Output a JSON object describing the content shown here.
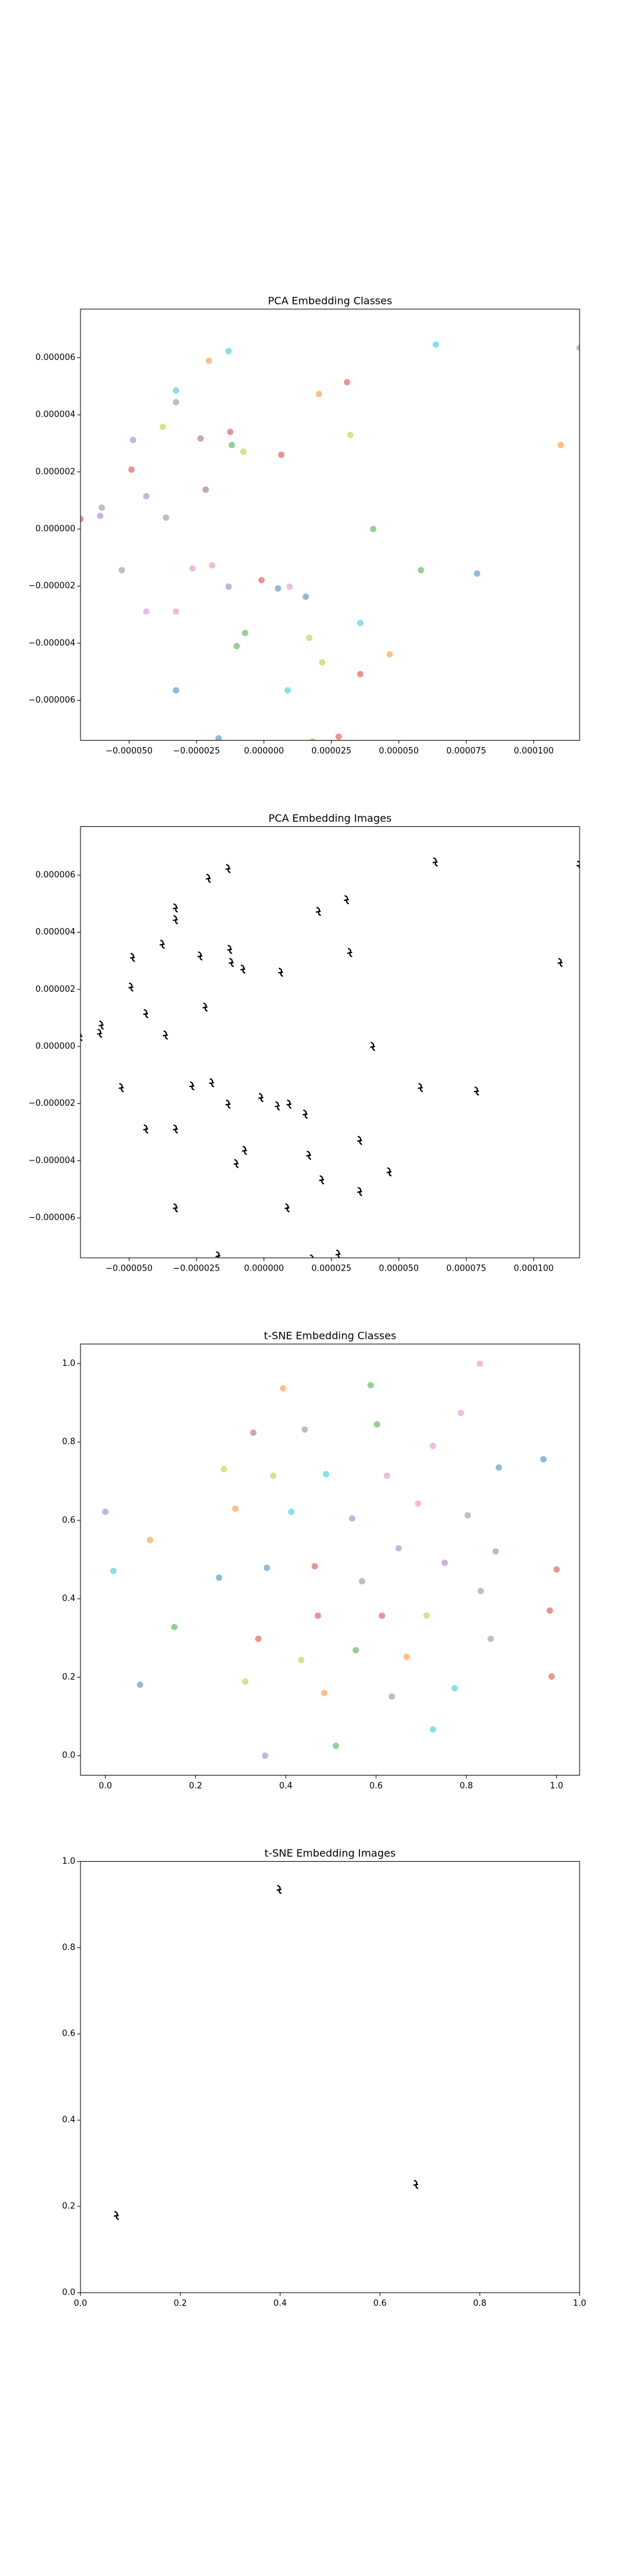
{
  "chart_data": [
    {
      "type": "scatter",
      "title": "PCA Embedding Classes",
      "x": [
        -1.31e-05,
        6.37e-05,
        0.000117,
        -2.04e-05,
        3.08e-05,
        -3.26e-05,
        2.04e-05,
        -3.26e-05,
        -3.75e-05,
        -4.85e-05,
        -1.25e-05,
        -2.35e-05,
        3.2e-05,
        -1.19e-05,
        -7.6e-06,
        6.4e-06,
        0.00011,
        -4.91e-05,
        -2.16e-05,
        -4.36e-05,
        -6.01e-05,
        -6.07e-05,
        -3.63e-05,
        -6.8e-05,
        4.05e-05,
        -5.27e-05,
        -2.65e-05,
        -1.92e-05,
        5.82e-05,
        7.9e-05,
        -9e-07,
        -1.31e-05,
        5.2e-06,
        9.5e-06,
        1.55e-05,
        -4.36e-05,
        -3.26e-05,
        3.57e-05,
        -7e-06,
        1.68e-05,
        -1.01e-05,
        4.66e-05,
        2.16e-05,
        3.57e-05,
        -3.26e-05,
        8.8e-06,
        -1.68e-05,
        1.8e-05,
        2.77e-05
      ],
      "y": [
        6.23e-06,
        6.46e-06,
        6.35e-06,
        5.89e-06,
        5.14e-06,
        4.85e-06,
        4.73e-06,
        4.44e-06,
        3.58e-06,
        3.12e-06,
        3.4e-06,
        3.17e-06,
        3.29e-06,
        2.94e-06,
        2.71e-06,
        2.6e-06,
        2.94e-06,
        2.08e-06,
        1.38e-06,
        1.15e-06,
        7.5e-07,
        4.6e-07,
        4e-07,
        3.5e-07,
        0,
        -1.44e-06,
        -1.38e-06,
        -1.27e-06,
        -1.44e-06,
        -1.56e-06,
        -1.79e-06,
        -2.02e-06,
        -2.08e-06,
        -2.02e-06,
        -2.37e-06,
        -2.89e-06,
        -2.89e-06,
        -3.29e-06,
        -3.64e-06,
        -3.81e-06,
        -4.1e-06,
        -4.39e-06,
        -4.67e-06,
        -5.08e-06,
        -5.65e-06,
        -5.65e-06,
        -7.33e-06,
        -7.44e-06,
        -7.27e-06
      ],
      "colors": [
        "#17becf",
        "#17becf",
        "#7f7f7f",
        "#ff7f0e",
        "#d62728",
        "#17becf",
        "#ff7f0e",
        "#7f7f7f",
        "#bcbd22",
        "#9467bd",
        "#d62728",
        "#8c564b",
        "#bcbd22",
        "#2ca02c",
        "#bcbd22",
        "#d62728",
        "#ff7f0e",
        "#d62728",
        "#8c564b",
        "#9467bd",
        "#7f7f7f",
        "#9467bd",
        "#7f7f7f",
        "#d62728",
        "#2ca02c",
        "#7f7f7f",
        "#e377c2",
        "#e377c2",
        "#2ca02c",
        "#1f77b4",
        "#d62728",
        "#9467bd",
        "#1f77b4",
        "#e377c2",
        "#1f77b4",
        "#e377c2",
        "#e377c2",
        "#17becf",
        "#2ca02c",
        "#bcbd22",
        "#2ca02c",
        "#ff7f0e",
        "#bcbd22",
        "#d62728",
        "#1f77b4",
        "#17becf",
        "#1f77b4",
        "#ff7f0e",
        "#d62728"
      ],
      "alpha": 0.5,
      "xlim": [
        -6.8e-05,
        0.000117
      ],
      "ylim": [
        -7.4e-06,
        7.7e-06
      ],
      "xticks": [
        {
          "value": -5e-05,
          "label": "−0.000050"
        },
        {
          "value": -2.5e-05,
          "label": "−0.000025"
        },
        {
          "value": 0,
          "label": "0.000000"
        },
        {
          "value": 2.5e-05,
          "label": "0.000025"
        },
        {
          "value": 5e-05,
          "label": "0.000050"
        },
        {
          "value": 7.5e-05,
          "label": "0.000075"
        },
        {
          "value": 0.0001,
          "label": "0.000100"
        }
      ],
      "yticks": [
        {
          "value": -6e-06,
          "label": "−0.000006"
        },
        {
          "value": -4e-06,
          "label": "−0.000004"
        },
        {
          "value": -2e-06,
          "label": "−0.000002"
        },
        {
          "value": 0,
          "label": "0.000000"
        },
        {
          "value": 2e-06,
          "label": "0.000002"
        },
        {
          "value": 4e-06,
          "label": "0.000004"
        },
        {
          "value": 6e-06,
          "label": "0.000006"
        }
      ]
    },
    {
      "type": "image-scatter",
      "title": "PCA Embedding Images",
      "x": [
        -1.31e-05,
        6.37e-05,
        0.000117,
        -2.04e-05,
        3.08e-05,
        -3.26e-05,
        2.04e-05,
        -3.26e-05,
        -3.75e-05,
        -4.85e-05,
        -1.25e-05,
        -2.35e-05,
        3.2e-05,
        -1.19e-05,
        -7.6e-06,
        6.4e-06,
        0.00011,
        -4.91e-05,
        -2.16e-05,
        -4.36e-05,
        -6.01e-05,
        -6.07e-05,
        -3.63e-05,
        -6.8e-05,
        4.05e-05,
        -5.27e-05,
        -2.65e-05,
        -1.92e-05,
        5.82e-05,
        7.9e-05,
        -9e-07,
        -1.31e-05,
        5.2e-06,
        9.5e-06,
        1.55e-05,
        -4.36e-05,
        -3.26e-05,
        3.57e-05,
        -7e-06,
        1.68e-05,
        -1.01e-05,
        4.66e-05,
        2.16e-05,
        3.57e-05,
        -3.26e-05,
        8.8e-06,
        -1.68e-05,
        1.8e-05,
        2.77e-05
      ],
      "y": [
        6.23e-06,
        6.46e-06,
        6.35e-06,
        5.89e-06,
        5.14e-06,
        4.85e-06,
        4.73e-06,
        4.44e-06,
        3.58e-06,
        3.12e-06,
        3.4e-06,
        3.17e-06,
        3.29e-06,
        2.94e-06,
        2.71e-06,
        2.6e-06,
        2.94e-06,
        2.08e-06,
        1.38e-06,
        1.15e-06,
        7.5e-07,
        4.6e-07,
        4e-07,
        3.5e-07,
        0,
        -1.44e-06,
        -1.38e-06,
        -1.27e-06,
        -1.44e-06,
        -1.56e-06,
        -1.79e-06,
        -2.02e-06,
        -2.08e-06,
        -2.02e-06,
        -2.37e-06,
        -2.89e-06,
        -2.89e-06,
        -3.29e-06,
        -3.64e-06,
        -3.81e-06,
        -4.1e-06,
        -4.39e-06,
        -4.67e-06,
        -5.08e-06,
        -5.65e-06,
        -5.65e-06,
        -7.33e-06,
        -7.44e-06,
        -7.27e-06
      ],
      "color": "#000000",
      "xlim": [
        -6.8e-05,
        0.000117
      ],
      "ylim": [
        -7.4e-06,
        7.7e-06
      ],
      "xticks": [
        {
          "value": -5e-05,
          "label": "−0.000050"
        },
        {
          "value": -2.5e-05,
          "label": "−0.000025"
        },
        {
          "value": 0,
          "label": "0.000000"
        },
        {
          "value": 2.5e-05,
          "label": "0.000025"
        },
        {
          "value": 5e-05,
          "label": "0.000050"
        },
        {
          "value": 7.5e-05,
          "label": "0.000075"
        },
        {
          "value": 0.0001,
          "label": "0.000100"
        }
      ],
      "yticks": [
        {
          "value": -6e-06,
          "label": "−0.000006"
        },
        {
          "value": -4e-06,
          "label": "−0.000004"
        },
        {
          "value": -2e-06,
          "label": "−0.000002"
        },
        {
          "value": 0,
          "label": "0.000000"
        },
        {
          "value": 2e-06,
          "label": "0.000002"
        },
        {
          "value": 4e-06,
          "label": "0.000004"
        },
        {
          "value": 6e-06,
          "label": "0.000006"
        }
      ]
    },
    {
      "type": "scatter",
      "title": "t-SNE Embedding Classes",
      "x": [
        0.83,
        0.394,
        0.588,
        0.788,
        0.602,
        0.328,
        0.442,
        0.726,
        0.872,
        0.971,
        0.263,
        0.372,
        0.489,
        0.624,
        0.693,
        0.288,
        0.412,
        0.547,
        0.803,
        0.0,
        0.099,
        0.65,
        0.865,
        0.018,
        0.358,
        0.464,
        0.752,
        1.0,
        0.252,
        0.569,
        0.832,
        0.153,
        0.471,
        0.613,
        0.712,
        0.985,
        0.339,
        0.854,
        0.555,
        0.434,
        0.668,
        0.077,
        0.31,
        0.485,
        0.774,
        0.635,
        0.989,
        0.726,
        0.511,
        0.354
      ],
      "y": [
        1.0,
        0.937,
        0.945,
        0.874,
        0.845,
        0.824,
        0.832,
        0.79,
        0.735,
        0.756,
        0.731,
        0.714,
        0.718,
        0.714,
        0.643,
        0.63,
        0.622,
        0.605,
        0.613,
        0.622,
        0.55,
        0.529,
        0.521,
        0.471,
        0.479,
        0.483,
        0.492,
        0.475,
        0.454,
        0.445,
        0.42,
        0.328,
        0.357,
        0.357,
        0.357,
        0.37,
        0.298,
        0.298,
        0.269,
        0.244,
        0.252,
        0.181,
        0.189,
        0.16,
        0.172,
        0.151,
        0.202,
        0.067,
        0.025,
        0.0
      ],
      "colors": [
        "#e377c2",
        "#ff7f0e",
        "#2ca02c",
        "#e377c2",
        "#2ca02c",
        "#8c564b",
        "#7f7f7f",
        "#e377c2",
        "#1f77b4",
        "#1f77b4",
        "#bcbd22",
        "#bcbd22",
        "#17becf",
        "#e377c2",
        "#e377c2",
        "#ff7f0e",
        "#17becf",
        "#9467bd",
        "#7f7f7f",
        "#9467bd",
        "#ff7f0e",
        "#9467bd",
        "#9467bd",
        "#17becf",
        "#1f77b4",
        "#d62728",
        "#9467bd",
        "#d62728",
        "#1f77b4",
        "#7f7f7f",
        "#7f7f7f",
        "#2ca02c",
        "#d62728",
        "#d62728",
        "#bcbd22",
        "#d62728",
        "#d62728",
        "#7f7f7f",
        "#2ca02c",
        "#bcbd22",
        "#ff7f0e",
        "#1f77b4",
        "#bcbd22",
        "#ff7f0e",
        "#17becf",
        "#7f7f7f",
        "#d62728",
        "#17becf",
        "#2ca02c",
        "#9467bd"
      ],
      "alpha": 0.5,
      "xlim": [
        -0.055,
        1.051
      ],
      "ylim": [
        -0.05,
        1.05
      ],
      "xticks": [
        {
          "value": 0,
          "label": "0.0"
        },
        0.2,
        0.4,
        0.6,
        0.8,
        {
          "value": 1,
          "label": "1.0"
        }
      ],
      "yticks": [
        {
          "value": 0,
          "label": "0.0"
        },
        0.2,
        0.4,
        0.6,
        0.8,
        {
          "value": 1,
          "label": "1.0"
        }
      ]
    },
    {
      "type": "image-scatter",
      "title": "t-SNE Embedding Images",
      "x": [
        0.399,
        0.673,
        0.073
      ],
      "y": [
        0.935,
        0.251,
        0.179
      ],
      "color": "#000000",
      "xlim": [
        0,
        1
      ],
      "ylim": [
        0,
        1
      ],
      "xticks": [
        {
          "value": 0,
          "label": "0.0"
        },
        0.2,
        0.4,
        0.6,
        0.8,
        {
          "value": 1,
          "label": "1.0"
        }
      ],
      "yticks": [
        {
          "value": 0,
          "label": "0.0"
        },
        0.2,
        0.4,
        0.6,
        0.8,
        {
          "value": 1,
          "label": "1.0"
        }
      ]
    }
  ]
}
